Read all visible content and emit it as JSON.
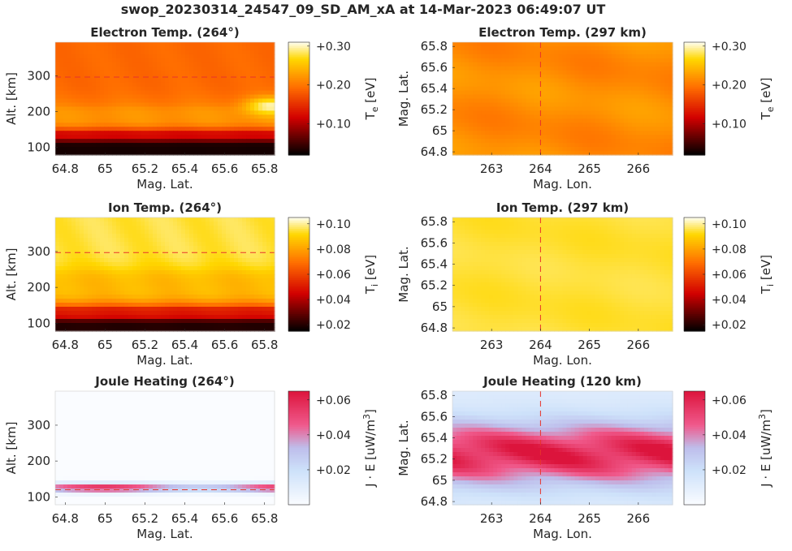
{
  "figure": {
    "title": "swop_20230314_24547_09_SD_AM_xA at 14-Mar-2023 06:49:07 UT"
  },
  "chart_data": [
    {
      "type": "heatmap",
      "title": "Electron Temp. (264°)",
      "xlabel": "Mag. Lat.",
      "ylabel": "Alt. [km]",
      "xlim": [
        64.75,
        65.85
      ],
      "ylim": [
        78,
        395
      ],
      "xticks": [
        "64.8",
        "65",
        "65.2",
        "65.4",
        "65.6",
        "65.8"
      ],
      "xtick_values": [
        64.8,
        65.0,
        65.2,
        65.4,
        65.6,
        65.8
      ],
      "yticks": [
        "100",
        "200",
        "300"
      ],
      "ytick_values": [
        100,
        200,
        300
      ],
      "colormap": "hot",
      "marker": {
        "orientation": "horizontal",
        "value": 297,
        "style": "dashed",
        "color": "#e8332a"
      },
      "colorbar": {
        "label_parts": [
          "T",
          "e",
          " [eV]"
        ],
        "label_sub": true,
        "range": [
          0.02,
          0.31
        ],
        "ticks": [
          "+0.10",
          "+0.20",
          "+0.30"
        ],
        "tick_values": [
          0.1,
          0.2,
          0.3
        ]
      },
      "values_description_free": true,
      "layers": [
        {
          "alt_range": [
            78,
            118
          ],
          "value": 0.03
        },
        {
          "alt_range": [
            118,
            150
          ],
          "value": 0.12
        },
        {
          "alt_range": [
            150,
            220
          ],
          "value": 0.22
        },
        {
          "alt_range": [
            220,
            395
          ],
          "value": 0.19
        }
      ],
      "hotspot": {
        "lat": 65.83,
        "alt": 215,
        "value": 0.3
      }
    },
    {
      "type": "heatmap",
      "title": "Electron Temp. (297 km)",
      "xlabel": "Mag. Lon.",
      "ylabel": "Mag. Lat.",
      "xlim": [
        262.2,
        266.7
      ],
      "ylim": [
        64.77,
        65.84
      ],
      "xticks": [
        "263",
        "264",
        "265",
        "266"
      ],
      "xtick_values": [
        263,
        264,
        265,
        266
      ],
      "yticks": [
        "64.8",
        "65",
        "65.2",
        "65.4",
        "65.6",
        "65.8"
      ],
      "ytick_values": [
        64.8,
        65.0,
        65.2,
        65.4,
        65.6,
        65.8
      ],
      "colormap": "hot",
      "marker": {
        "orientation": "vertical",
        "value": 264,
        "style": "dashed",
        "color": "#e8332a"
      },
      "colorbar": {
        "label_parts": [
          "T",
          "e",
          " [eV]"
        ],
        "label_sub": true,
        "range": [
          0.02,
          0.31
        ],
        "ticks": [
          "+0.10",
          "+0.20",
          "+0.30"
        ],
        "tick_values": [
          0.1,
          0.2,
          0.3
        ]
      },
      "field_value_range": [
        0.2,
        0.23
      ]
    },
    {
      "type": "heatmap",
      "title": "Ion Temp. (264°)",
      "xlabel": "Mag. Lat.",
      "ylabel": "Alt. [km]",
      "xlim": [
        64.75,
        65.85
      ],
      "ylim": [
        78,
        395
      ],
      "xticks": [
        "64.8",
        "65",
        "65.2",
        "65.4",
        "65.6",
        "65.8"
      ],
      "xtick_values": [
        64.8,
        65.0,
        65.2,
        65.4,
        65.6,
        65.8
      ],
      "yticks": [
        "100",
        "200",
        "300"
      ],
      "ytick_values": [
        100,
        200,
        300
      ],
      "colormap": "hot",
      "marker": {
        "orientation": "horizontal",
        "value": 297,
        "style": "dashed",
        "color": "#e8332a"
      },
      "colorbar": {
        "label_parts": [
          "T",
          "i",
          " [eV]"
        ],
        "label_sub": true,
        "range": [
          0.015,
          0.105
        ],
        "ticks": [
          "+0.02",
          "+0.04",
          "+0.06",
          "+0.08",
          "+0.10"
        ],
        "tick_values": [
          0.02,
          0.04,
          0.06,
          0.08,
          0.1
        ]
      },
      "layers": [
        {
          "alt_range": [
            78,
            110
          ],
          "value": 0.02
        },
        {
          "alt_range": [
            110,
            150
          ],
          "value": 0.05
        },
        {
          "alt_range": [
            150,
            250
          ],
          "value": 0.085
        },
        {
          "alt_range": [
            250,
            395
          ],
          "value": 0.095
        }
      ]
    },
    {
      "type": "heatmap",
      "title": "Ion Temp. (297 km)",
      "xlabel": "Mag. Lon.",
      "ylabel": "Mag. Lat.",
      "xlim": [
        262.2,
        266.7
      ],
      "ylim": [
        64.77,
        65.84
      ],
      "xticks": [
        "263",
        "264",
        "265",
        "266"
      ],
      "xtick_values": [
        263,
        264,
        265,
        266
      ],
      "yticks": [
        "64.8",
        "65",
        "65.2",
        "65.4",
        "65.6",
        "65.8"
      ],
      "ytick_values": [
        64.8,
        65.0,
        65.2,
        65.4,
        65.6,
        65.8
      ],
      "colormap": "hot",
      "marker": {
        "orientation": "vertical",
        "value": 264,
        "style": "dashed",
        "color": "#e8332a"
      },
      "colorbar": {
        "label_parts": [
          "T",
          "i",
          " [eV]"
        ],
        "label_sub": true,
        "range": [
          0.015,
          0.105
        ],
        "ticks": [
          "+0.02",
          "+0.04",
          "+0.06",
          "+0.08",
          "+0.10"
        ],
        "tick_values": [
          0.02,
          0.04,
          0.06,
          0.08,
          0.1
        ]
      },
      "field_value_range": [
        0.093,
        0.096
      ]
    },
    {
      "type": "heatmap",
      "title": "Joule Heating (264°)",
      "xlabel": "Mag. Lat.",
      "ylabel": "Alt. [km]",
      "xlim": [
        64.75,
        65.85
      ],
      "ylim": [
        78,
        395
      ],
      "xticks": [
        "64.8",
        "65",
        "65.2",
        "65.4",
        "65.6",
        "65.8"
      ],
      "xtick_values": [
        64.8,
        65.0,
        65.2,
        65.4,
        65.6,
        65.8
      ],
      "yticks": [
        "100",
        "200",
        "300"
      ],
      "ytick_values": [
        100,
        200,
        300
      ],
      "colormap": "white-blue-red",
      "marker": {
        "orientation": "horizontal",
        "value": 120,
        "style": "dashed",
        "color": "#e8332a"
      },
      "colorbar": {
        "label_parts": [
          "J · E [uW/m",
          "3",
          "]"
        ],
        "label_sup": true,
        "range": [
          0.0,
          0.065
        ],
        "ticks": [
          "+0.02",
          "+0.04",
          "+0.06"
        ],
        "tick_values": [
          0.02,
          0.04,
          0.06
        ]
      },
      "band": {
        "alt_center": 125,
        "alt_halfwidth": 12,
        "peak_value": 0.06
      }
    },
    {
      "type": "heatmap",
      "title": "Joule Heating (120 km)",
      "xlabel": "Mag. Lon.",
      "ylabel": "Mag. Lat.",
      "xlim": [
        262.2,
        266.7
      ],
      "ylim": [
        64.77,
        65.84
      ],
      "xticks": [
        "263",
        "264",
        "265",
        "266"
      ],
      "xtick_values": [
        263,
        264,
        265,
        266
      ],
      "yticks": [
        "64.8",
        "65",
        "65.2",
        "65.4",
        "65.6",
        "65.8"
      ],
      "ytick_values": [
        64.8,
        65.0,
        65.2,
        65.4,
        65.6,
        65.8
      ],
      "colormap": "white-blue-red",
      "marker": {
        "orientation": "vertical",
        "value": 264,
        "style": "dashed",
        "color": "#e8332a"
      },
      "colorbar": {
        "label_parts": [
          "J · E [uW/m",
          "3",
          "]"
        ],
        "label_sup": true,
        "range": [
          0.0,
          0.065
        ],
        "ticks": [
          "+0.02",
          "+0.04",
          "+0.06"
        ],
        "tick_values": [
          0.02,
          0.04,
          0.06
        ]
      },
      "peak_lat": 65.25,
      "peak_value": 0.058
    }
  ]
}
